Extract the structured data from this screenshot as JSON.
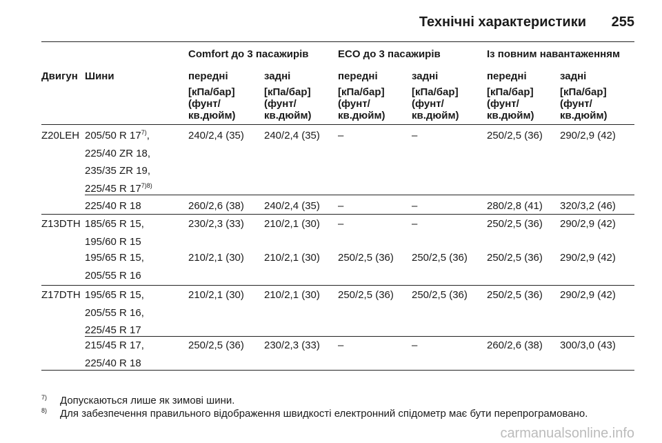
{
  "header": {
    "title": "Технічні характеристики",
    "page": "255"
  },
  "table": {
    "head": {
      "engine": "Двигун",
      "tires": "Шини",
      "groups": [
        "Comfort до 3 пасажирів",
        "ECO до 3 пасажирів",
        "Із повним навантаженням"
      ],
      "axles": [
        "передні",
        "задні",
        "передні",
        "задні",
        "передні",
        "задні"
      ],
      "units": [
        [
          "[кПа/бар]",
          "(фунт/",
          "кв.дюйм)"
        ],
        [
          "[кПа/бар]",
          "(фунт/",
          "кв.дюйм)"
        ],
        [
          "[кПа/бар]",
          "(фунт/",
          "кв.дюйм)"
        ],
        [
          "[кПа/бар]",
          "(фунт/",
          "кв.дюйм)"
        ],
        [
          "[кПа/бар]",
          "(фунт/",
          "кв.дюйм)"
        ],
        [
          "[кПа/бар]",
          "(фунт/",
          "кв.дюйм)"
        ]
      ]
    },
    "groups": [
      {
        "engine": "Z20LEH",
        "rows": [
          {
            "tires": [
              [
                {
                  "text": "205/50 R 17"
                },
                {
                  "sup": "7)"
                },
                {
                  "text": ","
                }
              ],
              [
                {
                  "text": "225/40 ZR 18,"
                }
              ],
              [
                {
                  "text": "235/35 ZR 19,"
                }
              ],
              [
                {
                  "text": "225/45 R 17"
                },
                {
                  "sup": "7)8)"
                }
              ]
            ],
            "values": [
              "240/2,4 (35)",
              "240/2,4 (35)",
              "–",
              "–",
              "250/2,5 (36)",
              "290/2,9 (42)"
            ]
          },
          {
            "tires": [
              [
                {
                  "text": "225/40 R 18"
                }
              ]
            ],
            "values": [
              "260/2,6 (38)",
              "240/2,4 (35)",
              "–",
              "–",
              "280/2,8 (41)",
              "320/3,2 (46)"
            ]
          }
        ]
      },
      {
        "engine": "Z13DTH",
        "rows": [
          {
            "tires": [
              [
                {
                  "text": "185/65 R 15,"
                }
              ],
              [
                {
                  "text": "195/60 R 15"
                }
              ]
            ],
            "values": [
              "230/2,3 (33)",
              "210/2,1 (30)",
              "–",
              "–",
              "250/2,5 (36)",
              "290/2,9 (42)"
            ]
          },
          {
            "tires": [
              [
                {
                  "text": "195/65 R 15,"
                }
              ],
              [
                {
                  "text": "205/55 R 16"
                }
              ]
            ],
            "values": [
              "210/2,1 (30)",
              "210/2,1 (30)",
              "250/2,5 (36)",
              "250/2,5 (36)",
              "250/2,5 (36)",
              "290/2,9 (42)"
            ]
          }
        ]
      },
      {
        "engine": "Z17DTH",
        "rows": [
          {
            "tires": [
              [
                {
                  "text": "195/65 R 15,"
                }
              ],
              [
                {
                  "text": "205/55 R 16,"
                }
              ],
              [
                {
                  "text": "225/45 R 17"
                }
              ]
            ],
            "values": [
              "210/2,1 (30)",
              "210/2,1 (30)",
              "250/2,5 (36)",
              "250/2,5 (36)",
              "250/2,5 (36)",
              "290/2,9 (42)"
            ]
          },
          {
            "tires": [
              [
                {
                  "text": "215/45 R 17,"
                }
              ],
              [
                {
                  "text": "225/40 R 18"
                }
              ]
            ],
            "values": [
              "250/2,5 (36)",
              "230/2,3 (33)",
              "–",
              "–",
              "260/2,6 (38)",
              "300/3,0 (43)"
            ]
          }
        ]
      }
    ]
  },
  "footnotes": [
    {
      "mark": "7)",
      "text": "Допускаються лише як зимові шини."
    },
    {
      "mark": "8)",
      "text": "Для забезпечення правильного відображення швидкості електронний спідометр має бути перепрограмовано."
    }
  ],
  "watermark": "carmanualsonline.info"
}
